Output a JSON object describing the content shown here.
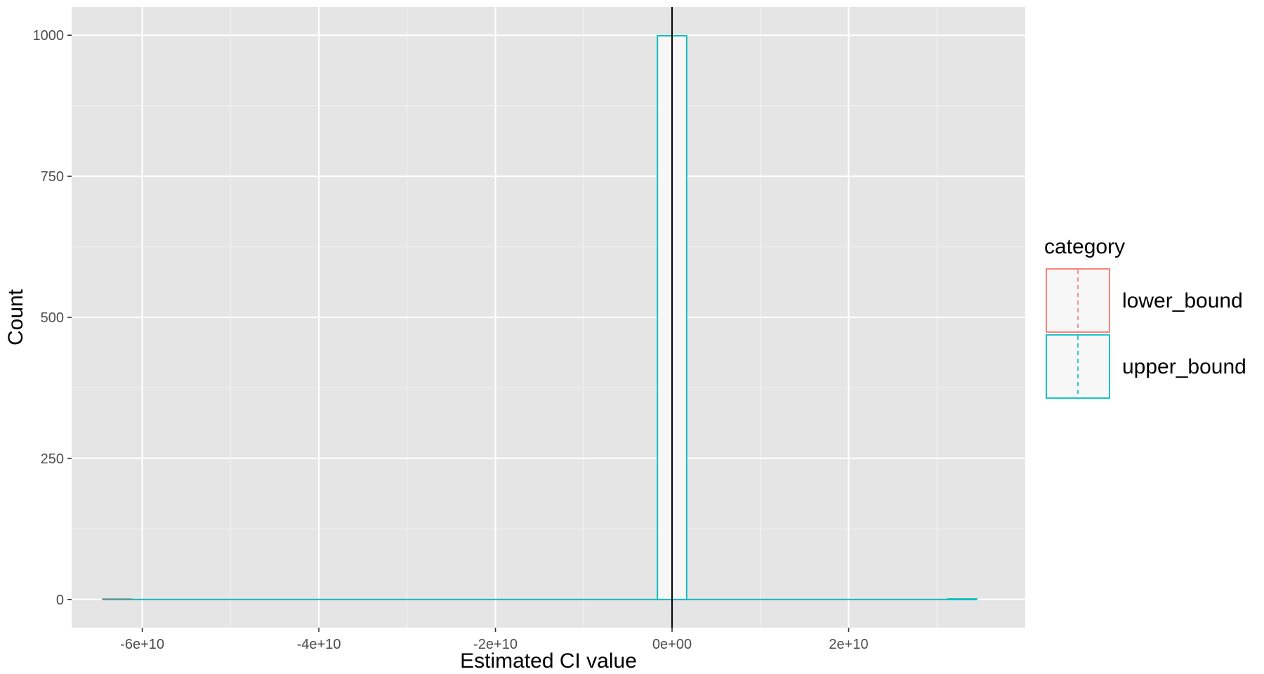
{
  "chart_data": {
    "type": "bar",
    "title": "",
    "xlabel": "Estimated CI value",
    "ylabel": "Count",
    "xlim": [
      -68000000000,
      40000000000
    ],
    "ylim": [
      -50,
      1050
    ],
    "x_ticks": [
      {
        "value": -60000000000,
        "label": "-6e+10"
      },
      {
        "value": -40000000000,
        "label": "-4e+10"
      },
      {
        "value": -20000000000,
        "label": "-2e+10"
      },
      {
        "value": 0,
        "label": "0e+00"
      },
      {
        "value": 20000000000,
        "label": "2e+10"
      }
    ],
    "y_ticks": [
      {
        "value": 0,
        "label": "0"
      },
      {
        "value": 250,
        "label": "250"
      },
      {
        "value": 500,
        "label": "500"
      },
      {
        "value": 750,
        "label": "750"
      },
      {
        "value": 1000,
        "label": "1000"
      }
    ],
    "grid": true,
    "background_color": "#e5e5e5",
    "bar_fill": "#f7f7f7",
    "vline": {
      "x": 0,
      "color": "#000000"
    },
    "legend": {
      "title": "category",
      "placement": "right",
      "entries": [
        "lower_bound",
        "upper_bound"
      ]
    },
    "series": [
      {
        "name": "lower_bound",
        "color": "#f8766d",
        "line_style": "dashed",
        "mean": 0,
        "bins": [
          {
            "x0": -64500000000,
            "x1": -61200000000,
            "count": 1
          },
          {
            "x0": -1650000000,
            "x1": 1650000000,
            "count": 999
          }
        ]
      },
      {
        "name": "upper_bound",
        "color": "#00bfc4",
        "line_style": "dashed",
        "mean": 0,
        "bins": [
          {
            "x0": -1650000000,
            "x1": 1650000000,
            "count": 999
          },
          {
            "x0": 31200000000,
            "x1": 34500000000,
            "count": 1
          }
        ]
      }
    ],
    "histogram_range": [
      -64500000000,
      34500000000
    ]
  }
}
